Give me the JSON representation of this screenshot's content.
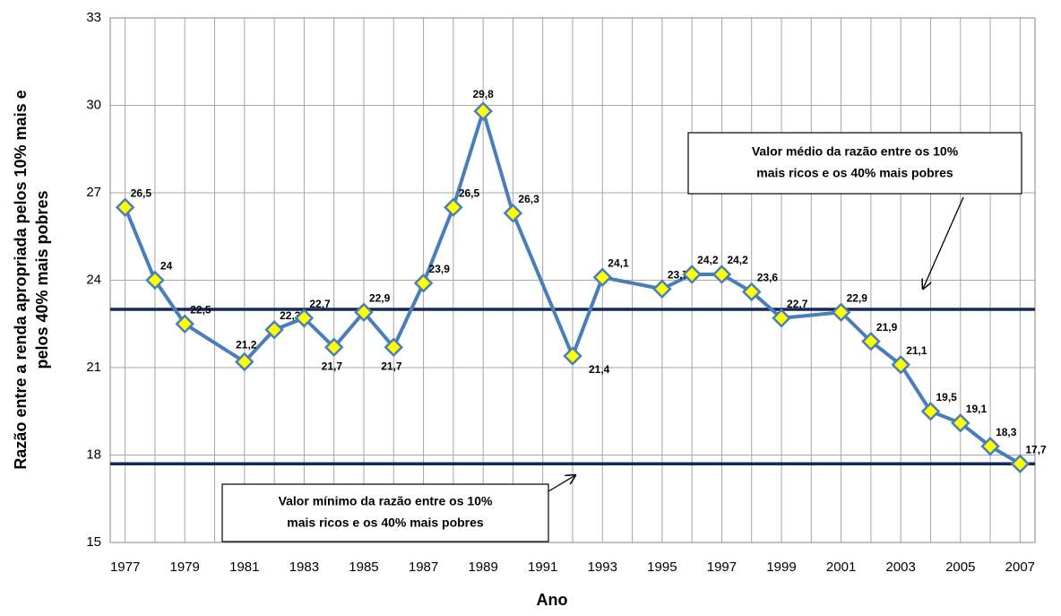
{
  "chart_data": {
    "type": "line",
    "x_label": "Ano",
    "y_label": [
      "Razão entre a renda apropriada pelos 10% mais  e",
      "pelos 40% mais pobres"
    ],
    "x": [
      1977,
      1978,
      1979,
      1981,
      1982,
      1983,
      1984,
      1985,
      1986,
      1987,
      1988,
      1989,
      1990,
      1992,
      1993,
      1995,
      1996,
      1997,
      1998,
      1999,
      2001,
      2002,
      2003,
      2004,
      2005,
      2006,
      2007
    ],
    "series": [
      {
        "name": "Razão",
        "color": "#4a7ebb",
        "marker_color": "#ffff00",
        "values": [
          26.5,
          24,
          22.5,
          21.2,
          22.3,
          22.7,
          21.7,
          22.9,
          21.7,
          23.9,
          26.5,
          29.8,
          26.3,
          21.4,
          24.1,
          23.7,
          24.2,
          24.2,
          23.6,
          22.7,
          22.9,
          21.9,
          21.1,
          19.5,
          19.1,
          18.3,
          17.7
        ],
        "value_labels": [
          "26,5",
          "24",
          "22,5",
          "21,2",
          "22,3",
          "22,7",
          "21,7",
          "22,9",
          "21,7",
          "23,9",
          "26,5",
          "29,8",
          "26,3",
          "21,4",
          "24,1",
          "23,7",
          "24,2",
          "24,2",
          "23,6",
          "22,7",
          "22,9",
          "21,9",
          "21,1",
          "19,5",
          "19,1",
          "18,3",
          "17,7"
        ]
      }
    ],
    "xlim": [
      1976.5,
      2007.5
    ],
    "xticks": [
      1977,
      1979,
      1981,
      1983,
      1985,
      1987,
      1989,
      1991,
      1993,
      1995,
      1997,
      1999,
      2001,
      2003,
      2005,
      2007
    ],
    "x_minor_ticks": [
      1978,
      1980,
      1982,
      1984,
      1986,
      1988,
      1990,
      1992,
      1994,
      1996,
      1998,
      2000,
      2002,
      2004,
      2006
    ],
    "ylim": [
      15,
      33
    ],
    "yticks": [
      15,
      18,
      21,
      24,
      27,
      30,
      33
    ],
    "grid": true,
    "reference_lines": [
      {
        "value": 23,
        "color": "#14285a",
        "label": [
          "Valor médio da razão entre os 10%",
          "mais ricos e os 40% mais pobres"
        ]
      },
      {
        "value": 17.7,
        "color": "#14285a",
        "label": [
          "Valor mínimo da razão entre os 10%",
          "mais ricos e os 40% mais pobres"
        ]
      }
    ]
  }
}
